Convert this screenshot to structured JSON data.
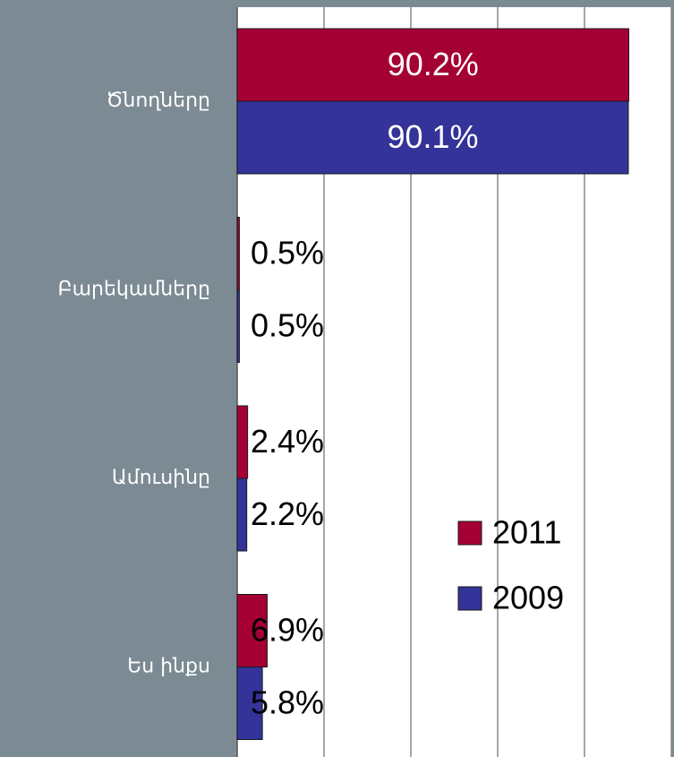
{
  "chart_data": {
    "type": "hbar",
    "categories": [
      "Ծնողները",
      "Բարեկամները",
      "Ամուսինը",
      "Ես ինքս"
    ],
    "series": [
      {
        "name": "2011",
        "color": "#a50034",
        "values": [
          90.2,
          0.5,
          2.4,
          6.9
        ],
        "value_labels": [
          "90.2%",
          "0.5%",
          "2.4%",
          "6.9%"
        ]
      },
      {
        "name": "2009",
        "color": "#333399",
        "values": [
          90.1,
          0.5,
          2.2,
          5.8
        ],
        "value_labels": [
          "90.1%",
          "0.5%",
          "2.2%",
          "5.8%"
        ]
      }
    ],
    "xlim": [
      0,
      100
    ],
    "xticks": [
      0,
      20,
      40,
      60,
      80,
      100
    ],
    "grid": true,
    "legend": "right"
  }
}
